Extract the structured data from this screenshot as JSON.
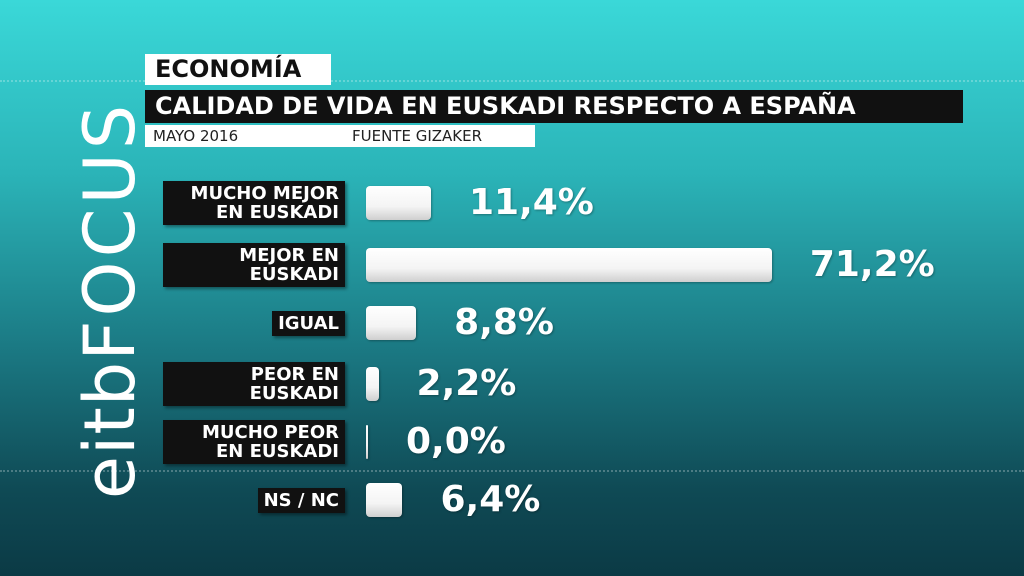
{
  "logo": {
    "brand": "eitb",
    "name": "FOCUS"
  },
  "chart_data": {
    "type": "bar",
    "orientation": "horizontal",
    "section": "ECONOMÍA",
    "title": "CALIDAD DE VIDA EN EUSKADI RESPECTO A ESPAÑA",
    "date": "MAYO 2016",
    "source": "FUENTE GIZAKER",
    "categories": [
      "MUCHO MEJOR EN EUSKADI",
      "MEJOR EN EUSKADI",
      "IGUAL",
      "PEOR EN EUSKADI",
      "MUCHO PEOR EN EUSKADI",
      "NS / NC"
    ],
    "values": [
      11.4,
      71.2,
      8.8,
      2.2,
      0.0,
      6.4
    ],
    "value_labels": [
      "11,4%",
      "71,2%",
      "8,8%",
      "2,2%",
      "0,0%",
      "6,4%"
    ],
    "color": "#ffffff"
  }
}
